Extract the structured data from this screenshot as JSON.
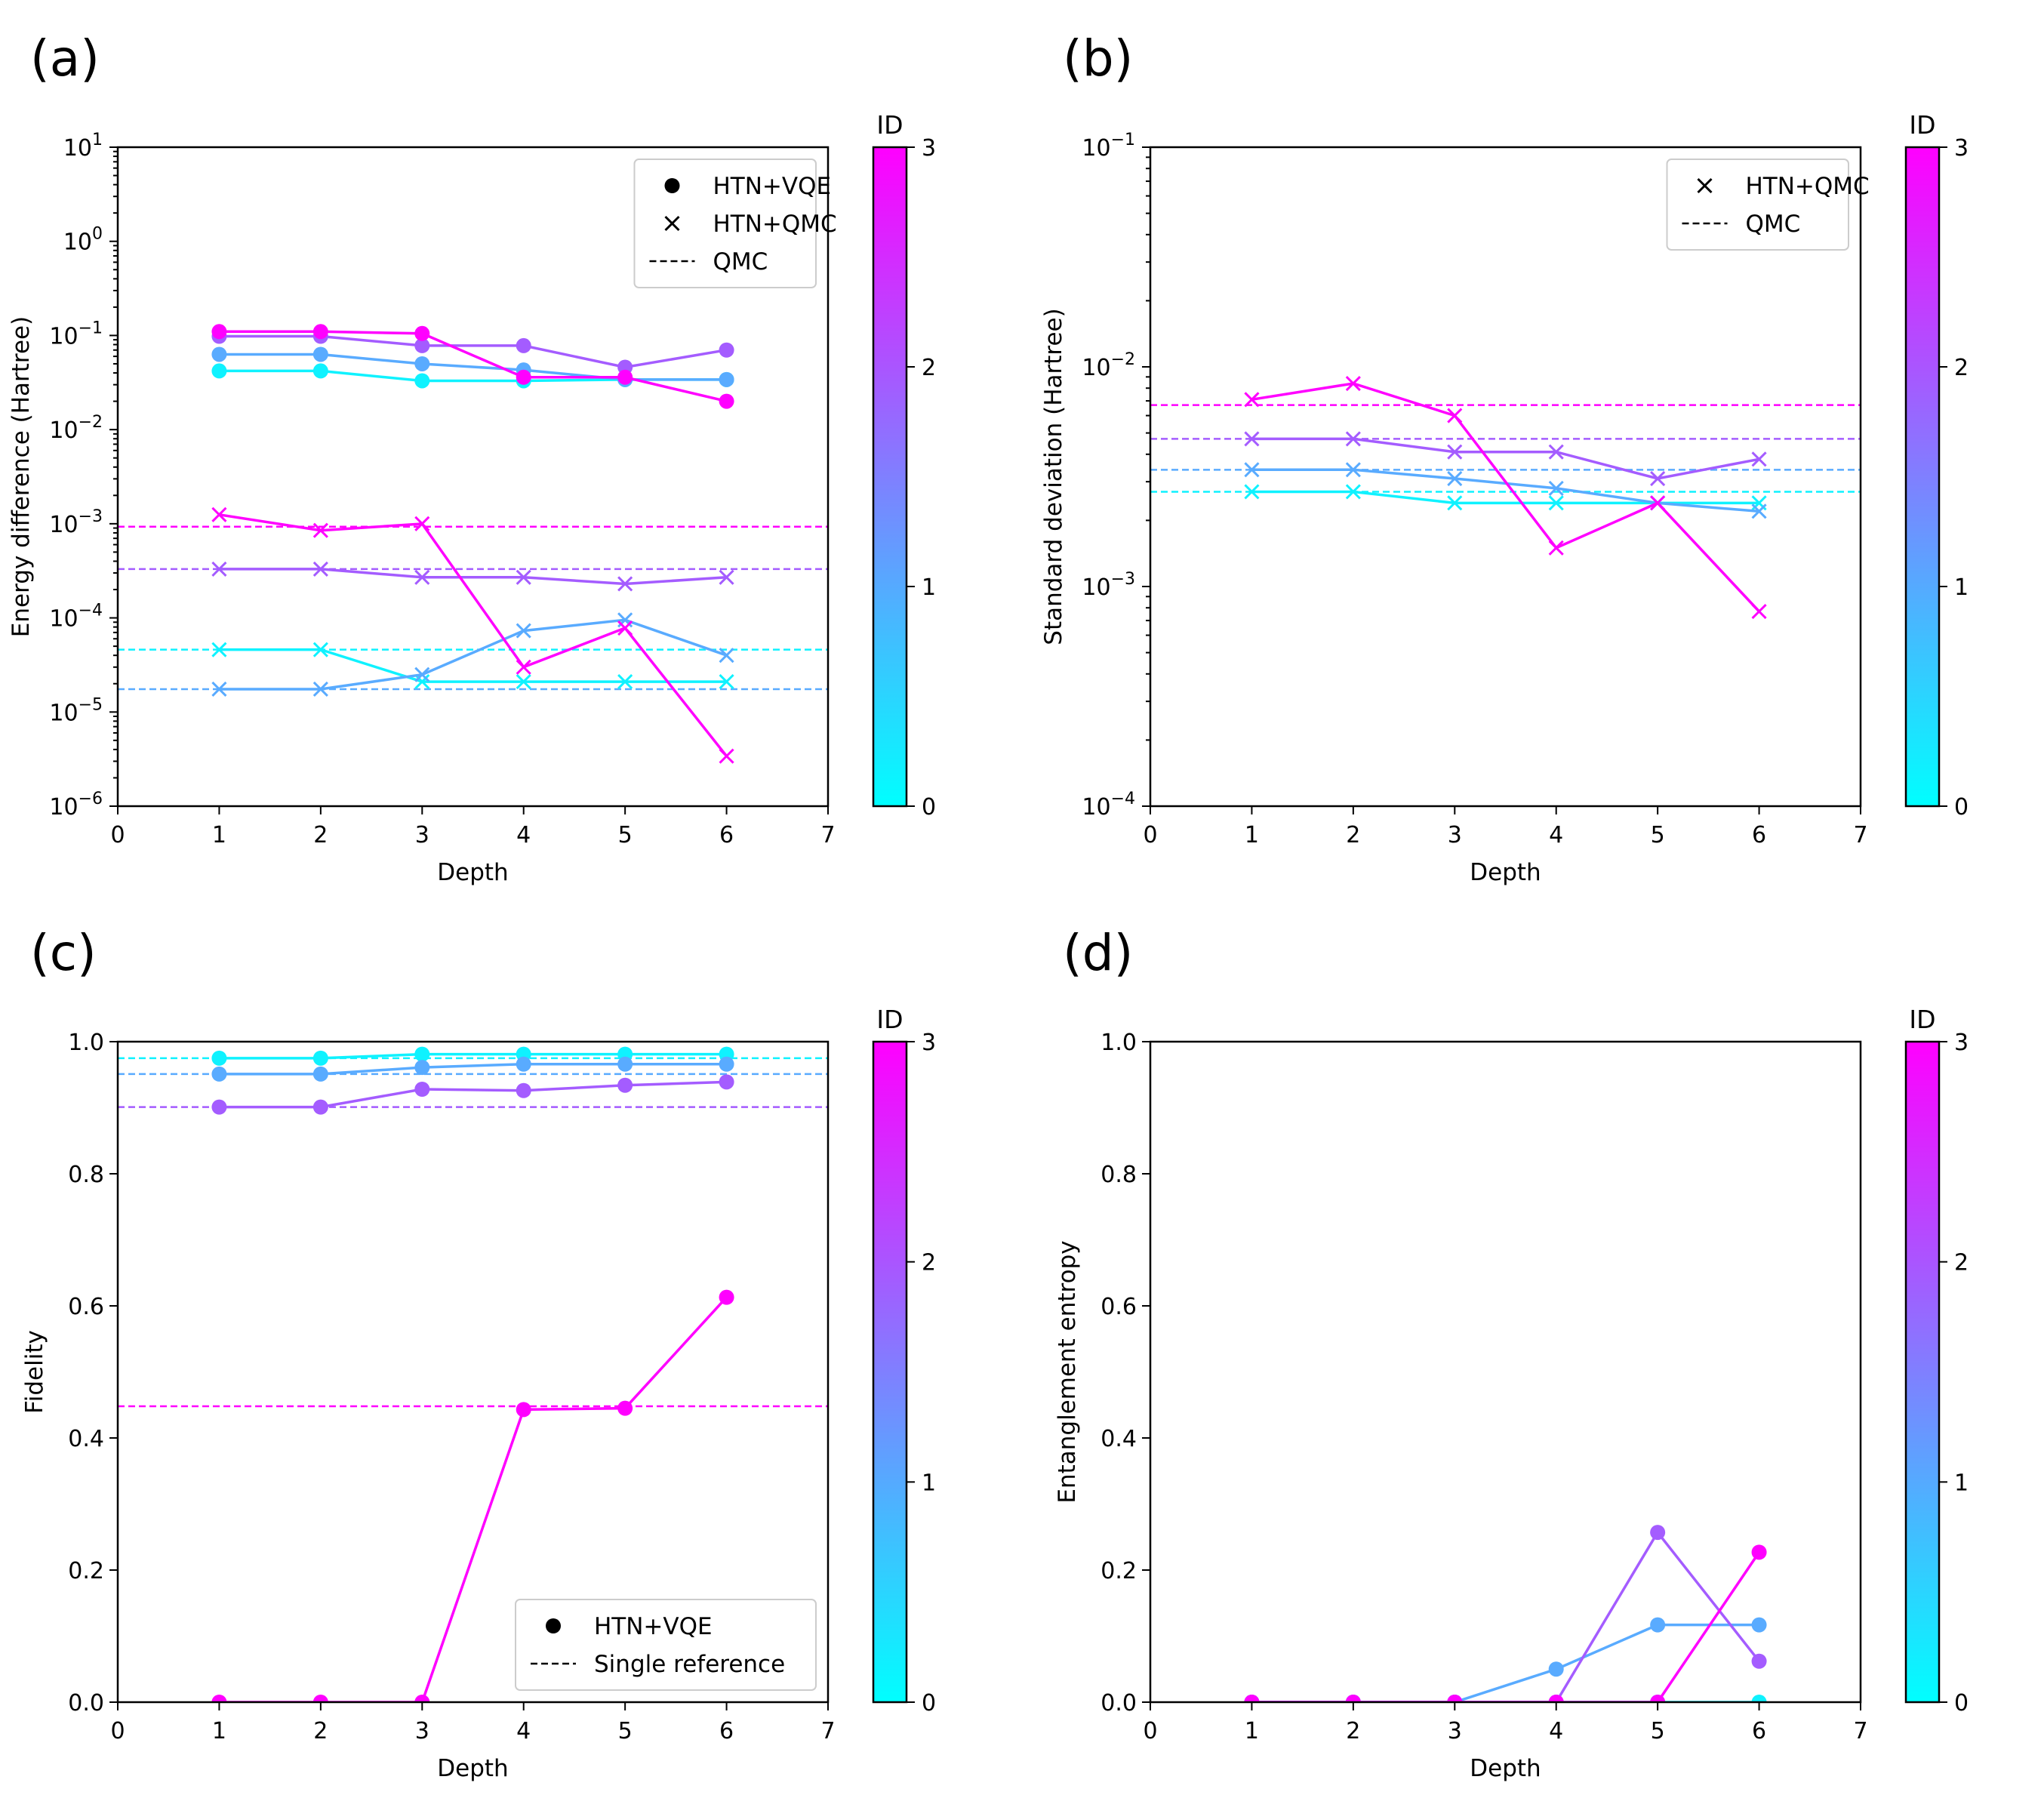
{
  "figure": {
    "colorbar": {
      "title": "ID",
      "ticks": [
        "0",
        "1",
        "2",
        "3"
      ],
      "stops": [
        "#00ffff",
        "#ff00ff"
      ]
    },
    "series_colors": {
      "0": "#0ff2ff",
      "1": "#59abff",
      "2": "#a45cff",
      "3": "#ff00ff"
    }
  },
  "chart_data": [
    {
      "panel": "(a)",
      "type": "line",
      "scale": "log",
      "xlabel": "Depth",
      "ylabel": "Energy difference (Hartree)",
      "xlim": [
        0,
        7
      ],
      "ylim": [
        1e-06,
        10
      ],
      "x_ticks": [
        "0",
        "1",
        "2",
        "3",
        "4",
        "5",
        "6",
        "7"
      ],
      "y_ticks": [
        {
          "base": "10",
          "exp": "1",
          "value": 10
        },
        {
          "base": "10",
          "exp": "0",
          "value": 1
        },
        {
          "base": "10",
          "exp": "−1",
          "value": 0.1
        },
        {
          "base": "10",
          "exp": "−2",
          "value": 0.01
        },
        {
          "base": "10",
          "exp": "−3",
          "value": 0.001
        },
        {
          "base": "10",
          "exp": "−4",
          "value": 0.0001
        },
        {
          "base": "10",
          "exp": "−5",
          "value": 1e-05
        },
        {
          "base": "10",
          "exp": "−6",
          "value": 1e-06
        }
      ],
      "legend": {
        "position": "top-right",
        "entries": [
          {
            "marker": "circle",
            "label": "HTN+VQE"
          },
          {
            "marker": "x",
            "label": "HTN+QMC"
          },
          {
            "marker": "dash",
            "label": "QMC"
          }
        ]
      },
      "x": [
        1,
        2,
        3,
        4,
        5,
        6
      ],
      "series": [
        {
          "id": 0,
          "kind": "HTN+VQE",
          "marker": "circle",
          "values": [
            0.042,
            0.042,
            0.033,
            0.033,
            0.034,
            0.034
          ]
        },
        {
          "id": 1,
          "kind": "HTN+VQE",
          "marker": "circle",
          "values": [
            0.063,
            0.063,
            0.05,
            0.043,
            0.034,
            0.034
          ]
        },
        {
          "id": 2,
          "kind": "HTN+VQE",
          "marker": "circle",
          "values": [
            0.098,
            0.098,
            0.078,
            0.078,
            0.046,
            0.07
          ]
        },
        {
          "id": 3,
          "kind": "HTN+VQE",
          "marker": "circle",
          "values": [
            0.11,
            0.11,
            0.105,
            0.036,
            0.036,
            0.02
          ]
        },
        {
          "id": 0,
          "kind": "HTN+QMC",
          "marker": "x",
          "values": [
            4.6e-05,
            4.6e-05,
            2.1e-05,
            2.1e-05,
            2.1e-05,
            2.1e-05
          ]
        },
        {
          "id": 1,
          "kind": "HTN+QMC",
          "marker": "x",
          "values": [
            1.75e-05,
            1.75e-05,
            2.5e-05,
            7.3e-05,
            9.5e-05,
            4e-05
          ]
        },
        {
          "id": 2,
          "kind": "HTN+QMC",
          "marker": "x",
          "values": [
            0.00033,
            0.00033,
            0.00027,
            0.00027,
            0.00023,
            0.00027
          ]
        },
        {
          "id": 3,
          "kind": "HTN+QMC",
          "marker": "x",
          "values": [
            0.00125,
            0.00085,
            0.001,
            3e-05,
            7.8e-05,
            3.4e-06
          ]
        }
      ],
      "reference_lines": [
        {
          "id": 0,
          "label": "QMC",
          "value": 4.6e-05
        },
        {
          "id": 1,
          "label": "QMC",
          "value": 1.75e-05
        },
        {
          "id": 2,
          "label": "QMC",
          "value": 0.00033
        },
        {
          "id": 3,
          "label": "QMC",
          "value": 0.00093
        }
      ]
    },
    {
      "panel": "(b)",
      "type": "line",
      "scale": "log",
      "xlabel": "Depth",
      "ylabel": "Standard deviation (Hartree)",
      "xlim": [
        0,
        7
      ],
      "ylim": [
        0.0001,
        0.1
      ],
      "x_ticks": [
        "0",
        "1",
        "2",
        "3",
        "4",
        "5",
        "6",
        "7"
      ],
      "y_ticks": [
        {
          "base": "10",
          "exp": "−1",
          "value": 0.1
        },
        {
          "base": "10",
          "exp": "−2",
          "value": 0.01
        },
        {
          "base": "10",
          "exp": "−3",
          "value": 0.001
        },
        {
          "base": "10",
          "exp": "−4",
          "value": 0.0001
        }
      ],
      "legend": {
        "position": "top-right",
        "entries": [
          {
            "marker": "x",
            "label": "HTN+QMC"
          },
          {
            "marker": "dash",
            "label": "QMC"
          }
        ]
      },
      "x": [
        1,
        2,
        3,
        4,
        5,
        6
      ],
      "series": [
        {
          "id": 0,
          "kind": "HTN+QMC",
          "marker": "x",
          "values": [
            0.0027,
            0.0027,
            0.0024,
            0.0024,
            0.0024,
            0.0024
          ]
        },
        {
          "id": 1,
          "kind": "HTN+QMC",
          "marker": "x",
          "values": [
            0.0034,
            0.0034,
            0.0031,
            0.0028,
            0.0024,
            0.0022
          ]
        },
        {
          "id": 2,
          "kind": "HTN+QMC",
          "marker": "x",
          "values": [
            0.0047,
            0.0047,
            0.0041,
            0.0041,
            0.0031,
            0.0038
          ]
        },
        {
          "id": 3,
          "kind": "HTN+QMC",
          "marker": "x",
          "values": [
            0.0071,
            0.0084,
            0.006,
            0.0015,
            0.0024,
            0.00077
          ]
        }
      ],
      "reference_lines": [
        {
          "id": 0,
          "label": "QMC",
          "value": 0.0027
        },
        {
          "id": 1,
          "label": "QMC",
          "value": 0.0034
        },
        {
          "id": 2,
          "label": "QMC",
          "value": 0.0047
        },
        {
          "id": 3,
          "label": "QMC",
          "value": 0.0067
        }
      ]
    },
    {
      "panel": "(c)",
      "type": "line",
      "scale": "linear",
      "xlabel": "Depth",
      "ylabel": "Fidelity",
      "xlim": [
        0,
        7
      ],
      "ylim": [
        0,
        1
      ],
      "x_ticks": [
        "0",
        "1",
        "2",
        "3",
        "4",
        "5",
        "6",
        "7"
      ],
      "y_ticks": [
        {
          "label": "0.0",
          "value": 0
        },
        {
          "label": "0.2",
          "value": 0.2
        },
        {
          "label": "0.4",
          "value": 0.4
        },
        {
          "label": "0.6",
          "value": 0.6
        },
        {
          "label": "0.8",
          "value": 0.8
        },
        {
          "label": "1.0",
          "value": 1
        }
      ],
      "legend": {
        "position": "bottom-right",
        "entries": [
          {
            "marker": "circle",
            "label": "HTN+VQE"
          },
          {
            "marker": "dash",
            "label": "Single reference"
          }
        ]
      },
      "x": [
        1,
        2,
        3,
        4,
        5,
        6
      ],
      "series": [
        {
          "id": 0,
          "kind": "HTN+VQE",
          "marker": "circle",
          "values": [
            0.975,
            0.975,
            0.981,
            0.981,
            0.981,
            0.981
          ]
        },
        {
          "id": 1,
          "kind": "HTN+VQE",
          "marker": "circle",
          "values": [
            0.951,
            0.951,
            0.961,
            0.966,
            0.966,
            0.966
          ]
        },
        {
          "id": 2,
          "kind": "HTN+VQE",
          "marker": "circle",
          "values": [
            0.901,
            0.901,
            0.928,
            0.926,
            0.934,
            0.939
          ]
        },
        {
          "id": 3,
          "kind": "HTN+VQE",
          "marker": "circle",
          "values": [
            0.0,
            0.0,
            0.0,
            0.443,
            0.445,
            0.613
          ]
        }
      ],
      "reference_lines": [
        {
          "id": 0,
          "label": "Single reference",
          "value": 0.975
        },
        {
          "id": 1,
          "label": "Single reference",
          "value": 0.951
        },
        {
          "id": 2,
          "label": "Single reference",
          "value": 0.901
        },
        {
          "id": 3,
          "label": "Single reference",
          "value": 0.448
        }
      ]
    },
    {
      "panel": "(d)",
      "type": "line",
      "scale": "linear",
      "xlabel": "Depth",
      "ylabel": "Entanglement entropy",
      "xlim": [
        0,
        7
      ],
      "ylim": [
        0,
        1
      ],
      "x_ticks": [
        "0",
        "1",
        "2",
        "3",
        "4",
        "5",
        "6",
        "7"
      ],
      "y_ticks": [
        {
          "label": "0.0",
          "value": 0
        },
        {
          "label": "0.2",
          "value": 0.2
        },
        {
          "label": "0.4",
          "value": 0.4
        },
        {
          "label": "0.6",
          "value": 0.6
        },
        {
          "label": "0.8",
          "value": 0.8
        },
        {
          "label": "1.0",
          "value": 1
        }
      ],
      "legend": null,
      "x": [
        1,
        2,
        3,
        4,
        5,
        6
      ],
      "series": [
        {
          "id": 0,
          "kind": "HTN+VQE",
          "marker": "circle",
          "values": [
            0,
            0,
            0,
            0,
            0,
            0
          ]
        },
        {
          "id": 1,
          "kind": "HTN+VQE",
          "marker": "circle",
          "values": [
            0,
            0,
            0,
            0.05,
            0.117,
            0.117
          ]
        },
        {
          "id": 2,
          "kind": "HTN+VQE",
          "marker": "circle",
          "values": [
            0,
            0,
            0,
            0,
            0.257,
            0.062
          ]
        },
        {
          "id": 3,
          "kind": "HTN+VQE",
          "marker": "circle",
          "values": [
            0,
            0,
            0,
            0,
            0,
            0.227
          ]
        }
      ],
      "reference_lines": []
    }
  ]
}
